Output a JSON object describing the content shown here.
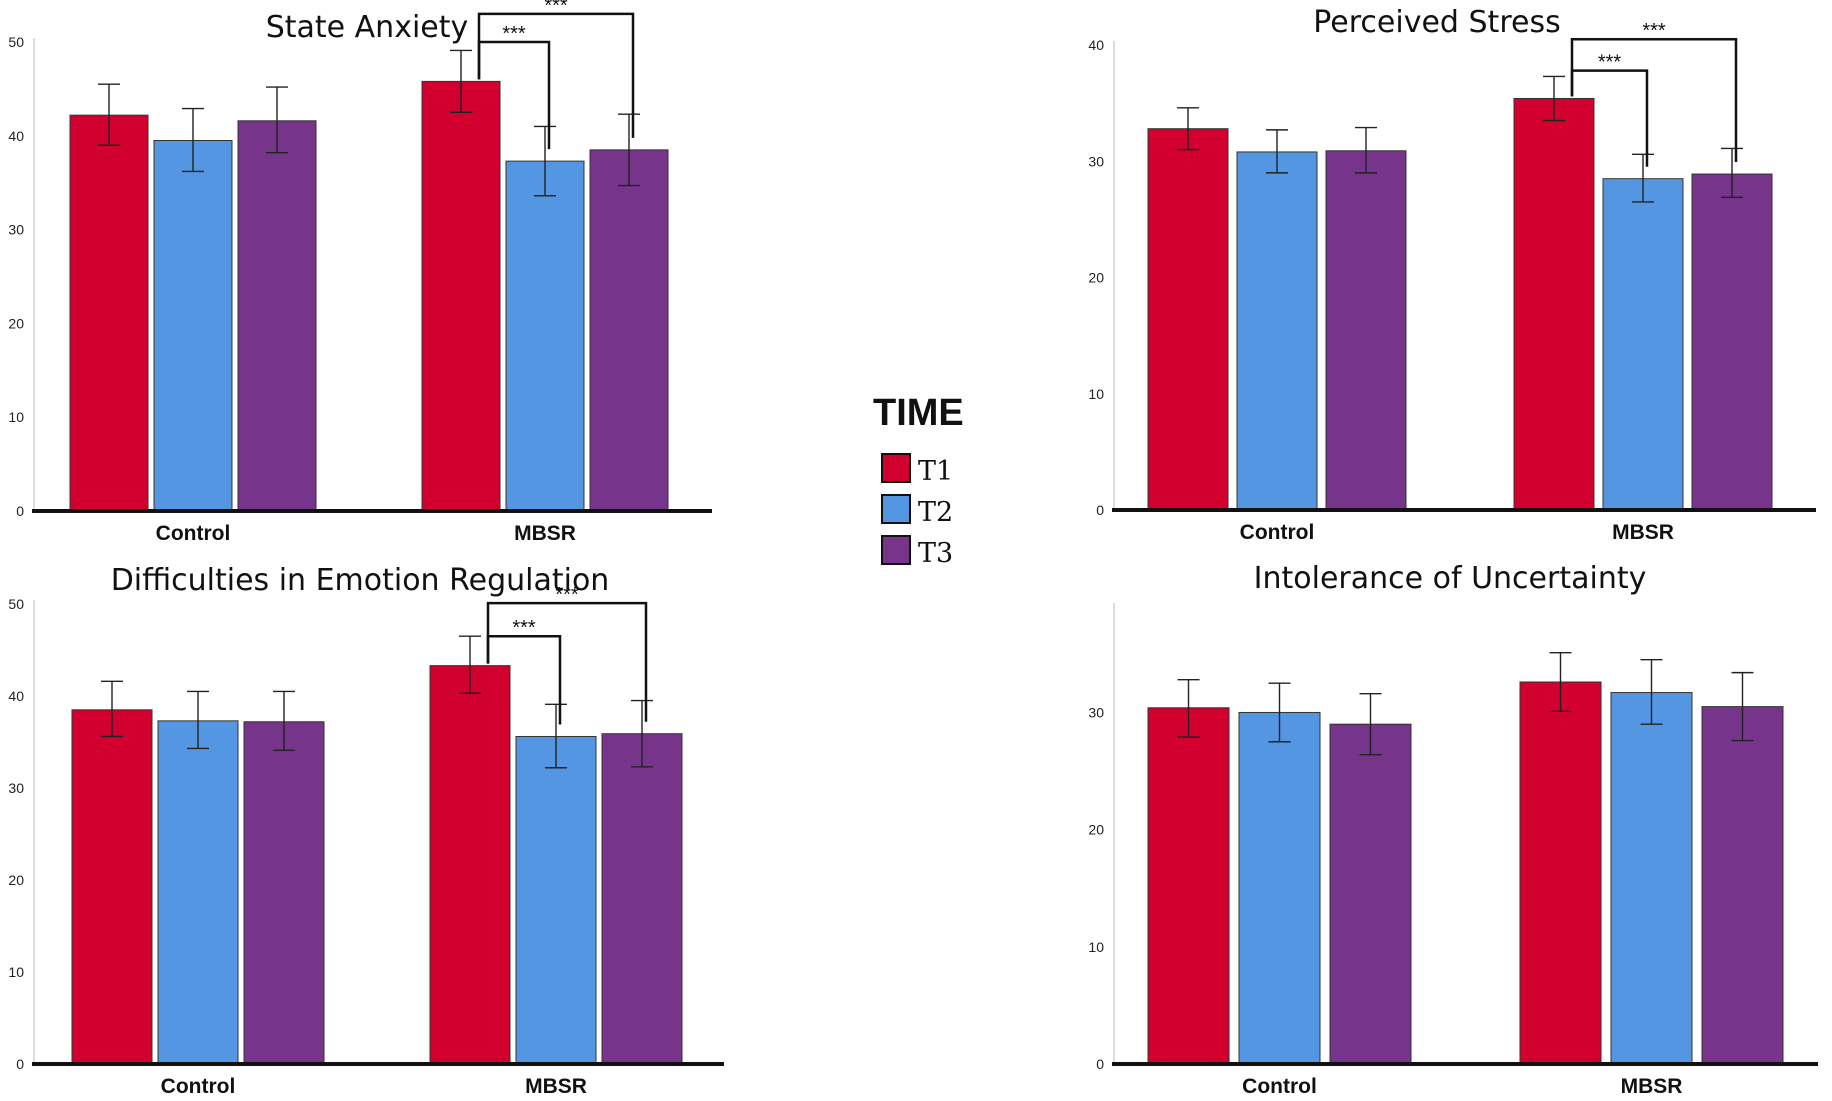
{
  "legend": {
    "title": "TIME",
    "entries": [
      {
        "label": "T1",
        "color": "#d1002f"
      },
      {
        "label": "T2",
        "color": "#5496e2"
      },
      {
        "label": "T3",
        "color": "#76348b"
      }
    ]
  },
  "chart_data": [
    {
      "type": "bar",
      "title": "State Anxiety",
      "categories": [
        "Control",
        "MBSR"
      ],
      "ylim": [
        0,
        50
      ],
      "yticks": [
        0,
        10,
        20,
        30,
        40,
        50
      ],
      "series": [
        {
          "name": "T1",
          "values": [
            42.2,
            45.8
          ],
          "err_low": [
            39.0,
            42.5
          ],
          "err_high": [
            45.5,
            49.1
          ]
        },
        {
          "name": "T2",
          "values": [
            39.5,
            37.3
          ],
          "err_low": [
            36.2,
            33.6
          ],
          "err_high": [
            42.9,
            41.0
          ]
        },
        {
          "name": "T3",
          "values": [
            41.6,
            38.5
          ],
          "err_low": [
            38.2,
            34.7
          ],
          "err_high": [
            45.2,
            42.3
          ]
        }
      ],
      "significance": [
        {
          "category": 1,
          "from": 0,
          "to": 1,
          "label": "***",
          "level": 50.0
        },
        {
          "category": 1,
          "from": 0,
          "to": 2,
          "label": "***",
          "level": 53.0
        }
      ]
    },
    {
      "type": "bar",
      "title": "Perceived Stress",
      "categories": [
        "Control",
        "MBSR"
      ],
      "ylim": [
        0,
        40
      ],
      "yticks": [
        0,
        10,
        20,
        30,
        40
      ],
      "series": [
        {
          "name": "T1",
          "values": [
            32.8,
            35.4
          ],
          "err_low": [
            31.0,
            33.5
          ],
          "err_high": [
            34.6,
            37.3
          ]
        },
        {
          "name": "T2",
          "values": [
            30.8,
            28.5
          ],
          "err_low": [
            29.0,
            26.5
          ],
          "err_high": [
            32.7,
            30.6
          ]
        },
        {
          "name": "T3",
          "values": [
            30.9,
            28.9
          ],
          "err_low": [
            29.0,
            26.9
          ],
          "err_high": [
            32.9,
            31.1
          ]
        }
      ],
      "significance": [
        {
          "category": 1,
          "from": 0,
          "to": 1,
          "label": "***",
          "level": 37.8
        },
        {
          "category": 1,
          "from": 0,
          "to": 2,
          "label": "***",
          "level": 40.5
        }
      ]
    },
    {
      "type": "bar",
      "title": "Difficulties in Emotion Regulation",
      "categories": [
        "Control",
        "MBSR"
      ],
      "ylim": [
        0,
        50
      ],
      "yticks": [
        0,
        10,
        20,
        30,
        40,
        50
      ],
      "series": [
        {
          "name": "T1",
          "values": [
            38.5,
            43.3
          ],
          "err_low": [
            35.6,
            40.3
          ],
          "err_high": [
            41.6,
            46.5
          ]
        },
        {
          "name": "T2",
          "values": [
            37.3,
            35.6
          ],
          "err_low": [
            34.3,
            32.2
          ],
          "err_high": [
            40.5,
            39.1
          ]
        },
        {
          "name": "T3",
          "values": [
            37.2,
            35.9
          ],
          "err_low": [
            34.1,
            32.3
          ],
          "err_high": [
            40.5,
            39.5
          ]
        }
      ],
      "significance": [
        {
          "category": 1,
          "from": 0,
          "to": 1,
          "label": "***",
          "level": 46.5
        },
        {
          "category": 1,
          "from": 0,
          "to": 2,
          "label": "***",
          "level": 50.1
        }
      ]
    },
    {
      "type": "bar",
      "title": "Intolerance of Uncertainty",
      "categories": [
        "Control",
        "MBSR"
      ],
      "ylim": [
        0,
        39
      ],
      "yticks": [
        0,
        10,
        20,
        30
      ],
      "series": [
        {
          "name": "T1",
          "values": [
            30.4,
            32.6
          ],
          "err_low": [
            27.9,
            30.1
          ],
          "err_high": [
            32.8,
            35.1
          ]
        },
        {
          "name": "T2",
          "values": [
            30.0,
            31.7
          ],
          "err_low": [
            27.5,
            29.0
          ],
          "err_high": [
            32.5,
            34.5
          ]
        },
        {
          "name": "T3",
          "values": [
            29.0,
            30.5
          ],
          "err_low": [
            26.4,
            27.6
          ],
          "err_high": [
            31.6,
            33.4
          ]
        }
      ],
      "significance": []
    }
  ]
}
